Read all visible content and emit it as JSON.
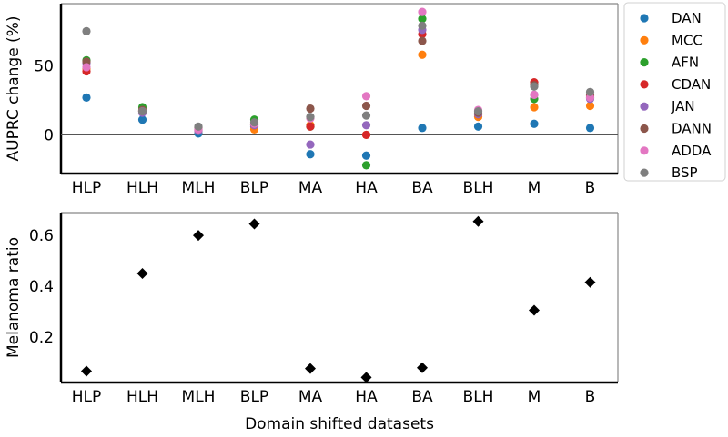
{
  "chart_data": [
    {
      "type": "scatter",
      "ylabel": "AUPRC change (%)",
      "xlabel": "",
      "categories": [
        "HLP",
        "HLH",
        "MLH",
        "BLP",
        "MA",
        "HA",
        "BA",
        "BLH",
        "M",
        "B"
      ],
      "ylim": [
        -28,
        95
      ],
      "yticks": [
        0,
        50
      ],
      "yticklabels": [
        "0",
        "50"
      ],
      "zero_line": true,
      "legend_position": "outside-right",
      "series": [
        {
          "name": "DAN",
          "color": "#1f77b4",
          "values": [
            27,
            11,
            1,
            6,
            -14,
            -15,
            5,
            6,
            8,
            5
          ]
        },
        {
          "name": "MCC",
          "color": "#ff7f0e",
          "values": [
            48,
            18,
            3,
            4,
            7,
            0,
            58,
            13,
            20,
            21
          ]
        },
        {
          "name": "AFN",
          "color": "#2ca02c",
          "values": [
            54,
            20,
            5,
            11,
            6,
            -22,
            84,
            15,
            26,
            27
          ]
        },
        {
          "name": "CDAN",
          "color": "#d62728",
          "values": [
            46,
            17,
            4,
            7,
            6,
            0,
            73,
            15,
            38,
            28
          ]
        },
        {
          "name": "JAN",
          "color": "#9467bd",
          "values": [
            52,
            16,
            3,
            7,
            -7,
            7,
            76,
            15,
            29,
            26
          ]
        },
        {
          "name": "DANN",
          "color": "#8c564b",
          "values": [
            53,
            18,
            5,
            8,
            19,
            21,
            68,
            16,
            36,
            29
          ]
        },
        {
          "name": "ADDA",
          "color": "#e377c2",
          "values": [
            49,
            17,
            4,
            8,
            12,
            28,
            89,
            18,
            29,
            27
          ]
        },
        {
          "name": "BSP",
          "color": "#7f7f7f",
          "values": [
            75,
            17,
            6,
            9,
            13,
            14,
            79,
            17,
            35,
            31
          ]
        }
      ]
    },
    {
      "type": "scatter",
      "ylabel": "Melanoma ratio",
      "xlabel": "Domain shifted datasets",
      "categories": [
        "HLP",
        "HLH",
        "MLH",
        "BLP",
        "MA",
        "HA",
        "BA",
        "BLH",
        "M",
        "B"
      ],
      "ylim": [
        0.02,
        0.69
      ],
      "yticks": [
        0.2,
        0.4,
        0.6
      ],
      "yticklabels": [
        "0.2",
        "0.4",
        "0.6"
      ],
      "marker": "diamond",
      "series": [
        {
          "name": "",
          "color": "#000000",
          "values": [
            0.065,
            0.45,
            0.6,
            0.645,
            0.075,
            0.04,
            0.078,
            0.655,
            0.305,
            0.415
          ]
        }
      ]
    }
  ]
}
